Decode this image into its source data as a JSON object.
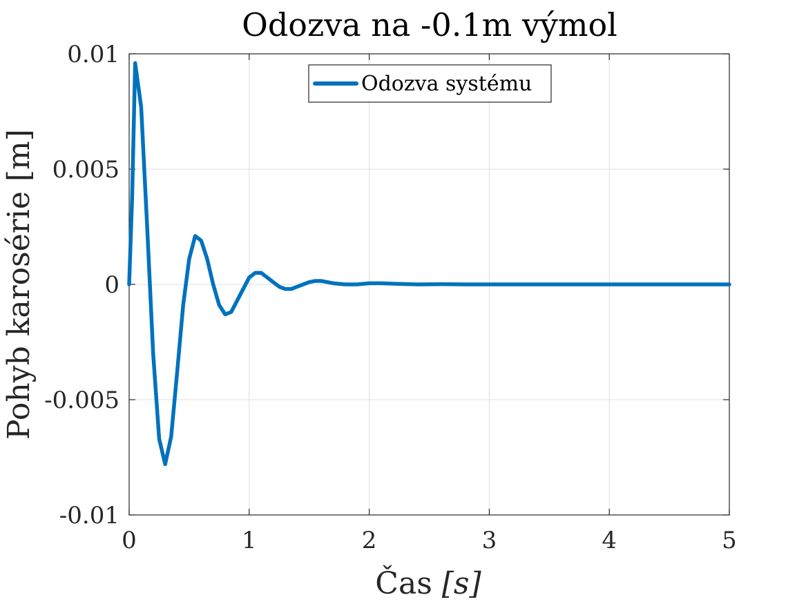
{
  "chart_data": {
    "type": "line",
    "title": "Odozva na -0.1m výmol",
    "xlabel_main": "Čas ",
    "xlabel_unit": "[s]",
    "ylabel": "Pohyb karosérie [m]",
    "xlim": [
      0,
      5
    ],
    "ylim": [
      -0.01,
      0.01
    ],
    "grid": true,
    "legend_position": "top-center",
    "xticks": [
      {
        "value": 0,
        "label": "0"
      },
      {
        "value": 1,
        "label": "1"
      },
      {
        "value": 2,
        "label": "2"
      },
      {
        "value": 3,
        "label": "3"
      },
      {
        "value": 4,
        "label": "4"
      },
      {
        "value": 5,
        "label": "5"
      }
    ],
    "yticks": [
      {
        "value": -0.01,
        "label": "-0.01"
      },
      {
        "value": -0.005,
        "label": "-0.005"
      },
      {
        "value": 0,
        "label": "0"
      },
      {
        "value": 0.005,
        "label": "0.005"
      },
      {
        "value": 0.01,
        "label": "0.01"
      }
    ],
    "series": [
      {
        "name": "Odozva systému",
        "color": "#0072BD",
        "x": [
          0,
          0.025,
          0.05,
          0.1,
          0.15,
          0.2,
          0.25,
          0.3,
          0.35,
          0.4,
          0.45,
          0.5,
          0.55,
          0.6,
          0.65,
          0.7,
          0.75,
          0.8,
          0.85,
          0.9,
          0.95,
          1.0,
          1.05,
          1.1,
          1.15,
          1.2,
          1.25,
          1.3,
          1.35,
          1.4,
          1.45,
          1.5,
          1.55,
          1.6,
          1.65,
          1.7,
          1.8,
          1.9,
          2.0,
          2.1,
          2.2,
          2.4,
          2.6,
          2.8,
          3.0,
          3.5,
          4.0,
          4.5,
          5.0
        ],
        "y": [
          0,
          0.0038,
          0.0096,
          0.0077,
          0.0025,
          -0.003,
          -0.0067,
          -0.0078,
          -0.0066,
          -0.0038,
          -0.0009,
          0.0011,
          0.0021,
          0.0019,
          0.0011,
          0.0,
          -0.0009,
          -0.0013,
          -0.0012,
          -0.0007,
          -0.0002,
          0.0003,
          0.0005,
          0.0005,
          0.0003,
          0.0001,
          -0.0001,
          -0.0002,
          -0.0002,
          -0.0001,
          0.0,
          0.0001,
          0.00015,
          0.00015,
          0.0001,
          5e-05,
          0.0,
          0.0,
          5e-05,
          5e-05,
          3e-05,
          0.0,
          1e-05,
          0.0,
          0.0,
          0.0,
          0.0,
          0.0,
          0.0
        ]
      }
    ]
  }
}
